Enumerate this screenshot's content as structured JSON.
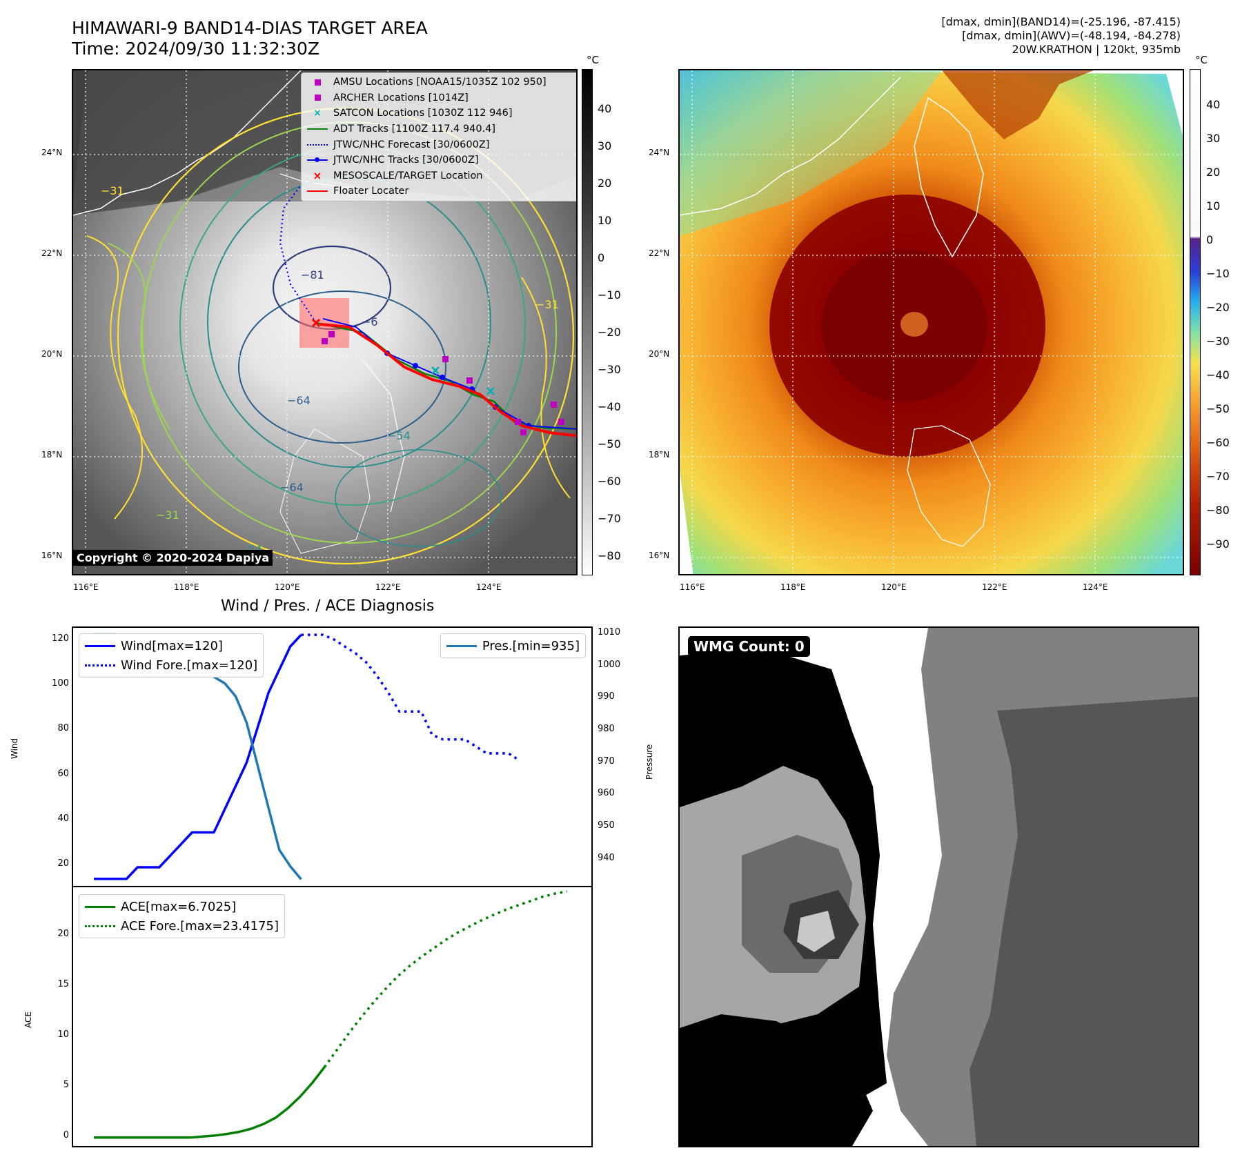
{
  "header": {
    "title_line1": "HIMAWARI-9 BAND14-DIAS TARGET AREA",
    "title_line2": "Time: 2024/09/30 11:32:30Z",
    "stats_line1": "[dmax, dmin](BAND14)=(-25.196, -87.415)",
    "stats_line2": "[dmax, dmin](AWV)=(-48.194, -84.278)",
    "stats_line3": "20W.KRATHON | 120kt, 935mb"
  },
  "map_axes": {
    "lat_ticks": [
      "24°N",
      "22°N",
      "20°N",
      "18°N",
      "16°N"
    ],
    "lon_ticks": [
      "116°E",
      "118°E",
      "120°E",
      "122°E",
      "124°E"
    ]
  },
  "left_map": {
    "colorbar_unit": "°C",
    "colorbar_ticks": [
      "40",
      "30",
      "20",
      "10",
      "0",
      "−10",
      "−20",
      "−30",
      "−40",
      "−50",
      "−60",
      "−70",
      "−80"
    ],
    "copyright": "Copyright © 2020-2024 Dapiya",
    "contour_labels": [
      "−81",
      "−64",
      "−54",
      "−64",
      "−31",
      "−31",
      "−54",
      "−31",
      "−6"
    ],
    "legend": [
      {
        "label": "AMSU Locations [NOAA15/1035Z 102 950]",
        "symbol": "square",
        "color": "#c000c0"
      },
      {
        "label": "ARCHER Locations [1014Z]",
        "symbol": "square",
        "color": "#c000c0"
      },
      {
        "label": "SATCON Locations [1030Z 112 946]",
        "symbol": "x",
        "color": "#00b0b0"
      },
      {
        "label": "ADT Tracks [1100Z 117.4 940.4]",
        "symbol": "line",
        "color": "#008000"
      },
      {
        "label": "JTWC/NHC Forecast [30/0600Z]",
        "symbol": "dotted",
        "color": "#0000ff"
      },
      {
        "label": "JTWC/NHC Tracks [30/0600Z]",
        "symbol": "line-dot",
        "color": "#0000ff"
      },
      {
        "label": "MESOSCALE/TARGET Location",
        "symbol": "x",
        "color": "#ff0000"
      },
      {
        "label": "Floater Locater",
        "symbol": "line",
        "color": "#ff0000"
      }
    ]
  },
  "right_map": {
    "colorbar_unit": "°C",
    "colorbar_ticks": [
      "40",
      "30",
      "20",
      "10",
      "0",
      "−10",
      "−20",
      "−30",
      "−40",
      "−50",
      "−60",
      "−70",
      "−80",
      "−90"
    ]
  },
  "diagnosis": {
    "title": "Wind / Pres. / ACE Diagnosis",
    "ylabel_wind": "Wind",
    "ylabel_pressure": "Pressure",
    "ylabel_ace": "ACE",
    "wind_ticks": [
      "120",
      "100",
      "80",
      "60",
      "40",
      "20"
    ],
    "pressure_ticks": [
      "1010",
      "1000",
      "990",
      "980",
      "970",
      "960",
      "950",
      "940"
    ],
    "ace_ticks": [
      "20",
      "15",
      "10",
      "5",
      "0"
    ],
    "legend_wind": "Wind[max=120]",
    "legend_wind_fore": "Wind Fore.[max=120]",
    "legend_pres": "Pres.[min=935]",
    "legend_ace": "ACE[max=6.7025]",
    "legend_ace_fore": "ACE Fore.[max=23.4175]"
  },
  "wmg": {
    "label": "WMG Count: 0"
  },
  "colors": {
    "wind": "#0000ff",
    "pressure": "#1f77b4",
    "ace": "#008000",
    "floater": "#ff0000",
    "adt": "#008000"
  },
  "chart_data": [
    {
      "type": "line",
      "panel": "wind-pressure",
      "x": [
        0,
        1,
        2,
        3,
        4,
        5,
        6,
        7,
        8,
        9,
        10,
        11,
        12,
        13,
        14,
        15,
        16,
        17,
        18,
        19,
        20,
        21,
        22,
        23,
        24,
        25,
        26,
        27,
        28,
        29,
        30,
        31,
        32,
        33,
        34,
        35,
        36,
        37,
        38,
        39,
        40,
        41,
        42,
        43
      ],
      "series": [
        {
          "name": "Wind[max=120]",
          "axis": "left",
          "style": "solid",
          "values": [
            15,
            15,
            15,
            15,
            20,
            20,
            20,
            25,
            30,
            35,
            35,
            35,
            45,
            55,
            65,
            80,
            95,
            105,
            115,
            120,
            null,
            null,
            null,
            null,
            null,
            null,
            null,
            null,
            null,
            null,
            null,
            null,
            null,
            null,
            null,
            null,
            null,
            null,
            null,
            null,
            null,
            null,
            null,
            null
          ]
        },
        {
          "name": "Wind Fore.[max=120]",
          "axis": "left",
          "style": "dotted",
          "values": [
            null,
            null,
            null,
            null,
            null,
            null,
            null,
            null,
            null,
            null,
            null,
            null,
            null,
            null,
            null,
            null,
            null,
            null,
            null,
            120,
            120,
            120,
            118,
            115,
            112,
            108,
            102,
            95,
            87,
            87,
            87,
            77,
            75,
            75,
            75,
            72,
            69,
            69,
            69,
            66,
            null,
            null,
            null,
            null
          ]
        },
        {
          "name": "Pres.[min=935]",
          "axis": "right",
          "style": "solid",
          "values": [
            1010,
            1010,
            1010,
            1008,
            1007,
            1006,
            1005,
            1004,
            1003,
            1001,
            999,
            997,
            995,
            991,
            983,
            970,
            957,
            944,
            939,
            935,
            null,
            null,
            null,
            null,
            null,
            null,
            null,
            null,
            null,
            null,
            null,
            null,
            null,
            null,
            null,
            null,
            null,
            null,
            null,
            null,
            null,
            null,
            null,
            null
          ]
        }
      ],
      "ylim_left": [
        12,
        123
      ],
      "ylim_right": [
        933,
        1012
      ]
    },
    {
      "type": "line",
      "panel": "ace",
      "x": [
        0,
        1,
        2,
        3,
        4,
        5,
        6,
        7,
        8,
        9,
        10,
        11,
        12,
        13,
        14,
        15,
        16,
        17,
        18,
        19,
        20,
        21,
        22,
        23,
        24,
        25,
        26,
        27,
        28,
        29,
        30,
        31,
        32,
        33,
        34,
        35,
        36,
        37,
        38,
        39
      ],
      "series": [
        {
          "name": "ACE[max=6.7025]",
          "style": "solid",
          "values": [
            0,
            0,
            0,
            0,
            0,
            0,
            0,
            0,
            0,
            0.1,
            0.2,
            0.35,
            0.55,
            0.85,
            1.3,
            1.9,
            2.8,
            3.9,
            5.2,
            6.7,
            null,
            null,
            null,
            null,
            null,
            null,
            null,
            null,
            null,
            null,
            null,
            null,
            null,
            null,
            null,
            null,
            null,
            null,
            null,
            null
          ]
        },
        {
          "name": "ACE Fore.[max=23.4175]",
          "style": "dotted",
          "values": [
            null,
            null,
            null,
            null,
            null,
            null,
            null,
            null,
            null,
            null,
            null,
            null,
            null,
            null,
            null,
            null,
            null,
            null,
            null,
            6.7,
            8.3,
            9.9,
            11.4,
            12.8,
            14.1,
            15.3,
            16.3,
            17.2,
            18.0,
            18.8,
            19.5,
            20.1,
            20.7,
            21.2,
            21.7,
            22.1,
            22.5,
            22.9,
            23.2,
            23.4
          ]
        }
      ],
      "ylim": [
        -0.8,
        23.8
      ]
    }
  ]
}
